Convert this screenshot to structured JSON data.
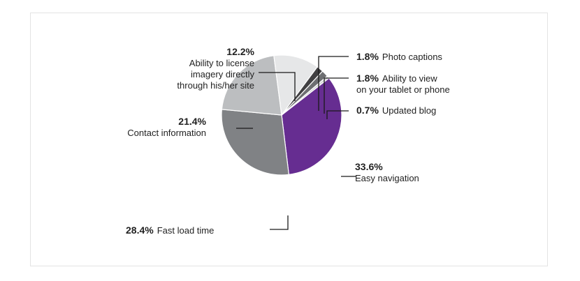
{
  "chart_data": {
    "type": "pie",
    "title": "",
    "slices": [
      {
        "name": "Easy navigation",
        "percent_label": "33.6%",
        "value": 33.6,
        "color": "#662d91"
      },
      {
        "name": "Fast load time",
        "percent_label": "28.4%",
        "value": 28.4,
        "color": "#808285"
      },
      {
        "name": "Contact information",
        "percent_label": "21.4%",
        "value": 21.4,
        "color": "#bcbec0"
      },
      {
        "name": "Ability to license imagery directly through his/her site",
        "lines": [
          "Ability to license",
          "imagery directly",
          "through his/her site"
        ],
        "percent_label": "12.2%",
        "value": 12.2,
        "color": "#e6e7e8"
      },
      {
        "name": "Photo captions",
        "percent_label": "1.8%",
        "value": 1.8,
        "color": "#414042"
      },
      {
        "name": "Ability to view on your tablet or phone",
        "lines": [
          "Ability to view",
          "on your tablet or phone"
        ],
        "percent_label": "1.8%",
        "value": 1.8,
        "color": "#6d6e71"
      },
      {
        "name": "Updated blog",
        "percent_label": "0.7%",
        "value": 0.7,
        "color": "#d1d3d4"
      }
    ]
  }
}
